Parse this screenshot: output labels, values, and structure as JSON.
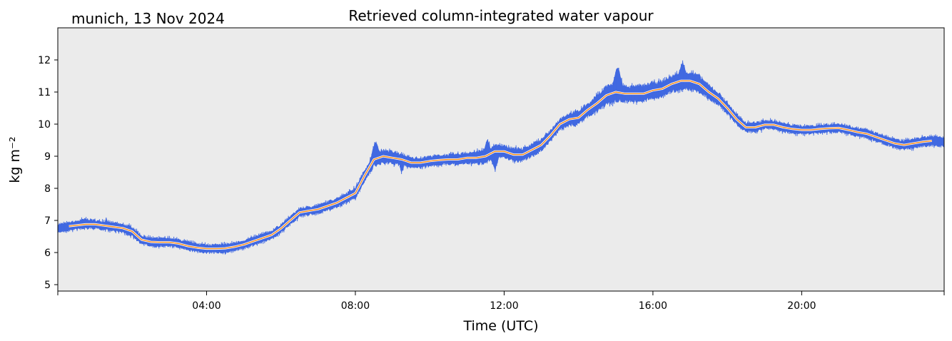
{
  "chart_data": {
    "type": "line",
    "title": "Retrieved column-integrated water vapour",
    "location_date": "munich, 13 Nov 2024",
    "xlabel": "Time (UTC)",
    "ylabel": "kg m⁻²",
    "xlim_hours": [
      0,
      23.83
    ],
    "ylim": [
      4.8,
      13.0
    ],
    "x_ticks": [
      "04:00",
      "08:00",
      "12:00",
      "16:00",
      "20:00"
    ],
    "y_ticks": [
      5,
      6,
      7,
      8,
      9,
      10,
      11,
      12
    ],
    "grid": false,
    "background_color": "#ebebeb",
    "series": [
      {
        "kind": "raw",
        "color": "#4169e1",
        "x_hours": [
          0.0,
          0.25,
          0.5,
          0.75,
          1.0,
          1.25,
          1.5,
          1.75,
          2.0,
          2.25,
          2.5,
          2.75,
          3.0,
          3.25,
          3.5,
          3.75,
          4.0,
          4.25,
          4.5,
          4.75,
          5.0,
          5.25,
          5.5,
          5.75,
          6.0,
          6.25,
          6.5,
          6.75,
          7.0,
          7.25,
          7.5,
          7.75,
          8.0,
          8.25,
          8.5,
          8.75,
          9.0,
          9.25,
          9.5,
          9.75,
          10.0,
          10.25,
          10.5,
          10.75,
          11.0,
          11.25,
          11.5,
          11.75,
          12.0,
          12.25,
          12.5,
          12.75,
          13.0,
          13.25,
          13.5,
          13.75,
          14.0,
          14.25,
          14.5,
          14.75,
          15.0,
          15.25,
          15.5,
          15.75,
          16.0,
          16.25,
          16.5,
          16.75,
          17.0,
          17.25,
          17.5,
          17.75,
          18.0,
          18.25,
          18.5,
          18.75,
          19.0,
          19.25,
          19.5,
          19.75,
          20.0,
          20.25,
          20.5,
          20.75,
          21.0,
          21.25,
          21.5,
          21.75,
          22.0,
          22.25,
          22.5,
          22.75,
          23.0,
          23.25,
          23.5,
          23.83
        ],
        "center": [
          6.75,
          6.8,
          6.85,
          6.9,
          6.88,
          6.83,
          6.8,
          6.75,
          6.65,
          6.4,
          6.33,
          6.32,
          6.32,
          6.28,
          6.2,
          6.15,
          6.12,
          6.12,
          6.13,
          6.18,
          6.25,
          6.35,
          6.45,
          6.55,
          6.75,
          7.0,
          7.25,
          7.3,
          7.35,
          7.45,
          7.55,
          7.7,
          7.85,
          8.4,
          8.9,
          9.0,
          8.95,
          8.9,
          8.8,
          8.8,
          8.85,
          8.88,
          8.9,
          8.9,
          8.95,
          8.95,
          9.0,
          9.15,
          9.15,
          9.05,
          9.05,
          9.2,
          9.35,
          9.65,
          10.0,
          10.15,
          10.2,
          10.45,
          10.65,
          10.9,
          11.0,
          10.95,
          10.95,
          10.95,
          11.05,
          11.1,
          11.25,
          11.35,
          11.35,
          11.25,
          11.0,
          10.8,
          10.5,
          10.15,
          9.9,
          9.9,
          9.98,
          9.98,
          9.9,
          9.85,
          9.82,
          9.82,
          9.85,
          9.87,
          9.88,
          9.82,
          9.75,
          9.7,
          9.6,
          9.5,
          9.4,
          9.35,
          9.4,
          9.45,
          9.48,
          9.45
        ],
        "spread": [
          0.3,
          0.3,
          0.3,
          0.35,
          0.3,
          0.3,
          0.3,
          0.3,
          0.35,
          0.3,
          0.3,
          0.3,
          0.3,
          0.3,
          0.3,
          0.3,
          0.3,
          0.3,
          0.3,
          0.3,
          0.3,
          0.3,
          0.3,
          0.3,
          0.3,
          0.3,
          0.3,
          0.3,
          0.3,
          0.3,
          0.35,
          0.35,
          0.4,
          0.4,
          0.5,
          0.5,
          0.45,
          0.4,
          0.35,
          0.35,
          0.35,
          0.35,
          0.35,
          0.4,
          0.4,
          0.45,
          0.5,
          0.45,
          0.4,
          0.5,
          0.45,
          0.45,
          0.4,
          0.4,
          0.4,
          0.45,
          0.5,
          0.5,
          0.6,
          0.7,
          0.7,
          0.55,
          0.55,
          0.6,
          0.6,
          0.55,
          0.6,
          0.65,
          0.65,
          0.6,
          0.5,
          0.45,
          0.4,
          0.35,
          0.35,
          0.35,
          0.3,
          0.3,
          0.3,
          0.3,
          0.3,
          0.3,
          0.3,
          0.3,
          0.3,
          0.3,
          0.3,
          0.3,
          0.3,
          0.3,
          0.3,
          0.3,
          0.35,
          0.35,
          0.35,
          0.35
        ],
        "peaks": [
          [
            1.3,
            7.1
          ],
          [
            8.55,
            9.55
          ],
          [
            11.55,
            9.6
          ],
          [
            12.8,
            9.5
          ],
          [
            14.3,
            10.6
          ],
          [
            15.05,
            11.85
          ],
          [
            16.8,
            12.0
          ],
          [
            18.3,
            10.0
          ]
        ],
        "troughs": [
          [
            4.5,
            5.9
          ],
          [
            9.25,
            8.45
          ],
          [
            11.75,
            8.5
          ]
        ]
      },
      {
        "kind": "smoothed",
        "color": "#ff8c1a",
        "x_hours": [
          0.3,
          0.75,
          1.0,
          1.25,
          1.5,
          1.75,
          2.0,
          2.25,
          2.5,
          2.75,
          3.0,
          3.25,
          3.5,
          3.75,
          4.0,
          4.25,
          4.5,
          4.75,
          5.0,
          5.25,
          5.5,
          5.75,
          6.0,
          6.25,
          6.5,
          6.75,
          7.0,
          7.25,
          7.5,
          7.75,
          8.0,
          8.25,
          8.5,
          8.75,
          9.0,
          9.25,
          9.5,
          9.75,
          10.0,
          10.25,
          10.5,
          10.75,
          11.0,
          11.25,
          11.5,
          11.75,
          12.0,
          12.25,
          12.5,
          12.75,
          13.0,
          13.25,
          13.5,
          13.75,
          14.0,
          14.25,
          14.5,
          14.75,
          15.0,
          15.25,
          15.5,
          15.75,
          16.0,
          16.25,
          16.5,
          16.75,
          17.0,
          17.25,
          17.5,
          17.75,
          18.0,
          18.25,
          18.5,
          18.75,
          19.0,
          19.25,
          19.5,
          19.75,
          20.0,
          20.25,
          20.5,
          20.75,
          21.0,
          21.25,
          21.5,
          21.75,
          22.0,
          22.25,
          22.5,
          22.75,
          23.0,
          23.25,
          23.5
        ],
        "values": [
          6.82,
          6.88,
          6.88,
          6.84,
          6.8,
          6.76,
          6.66,
          6.4,
          6.33,
          6.32,
          6.32,
          6.28,
          6.2,
          6.15,
          6.12,
          6.12,
          6.13,
          6.18,
          6.25,
          6.35,
          6.45,
          6.55,
          6.75,
          7.0,
          7.25,
          7.3,
          7.35,
          7.45,
          7.55,
          7.7,
          7.85,
          8.4,
          8.9,
          9.0,
          8.95,
          8.9,
          8.8,
          8.8,
          8.85,
          8.88,
          8.9,
          8.9,
          8.95,
          8.95,
          9.0,
          9.15,
          9.15,
          9.05,
          9.05,
          9.2,
          9.35,
          9.65,
          10.0,
          10.15,
          10.2,
          10.45,
          10.65,
          10.9,
          11.0,
          10.95,
          10.95,
          10.95,
          11.05,
          11.1,
          11.25,
          11.35,
          11.35,
          11.25,
          11.0,
          10.8,
          10.5,
          10.15,
          9.9,
          9.9,
          9.98,
          9.98,
          9.9,
          9.85,
          9.82,
          9.82,
          9.85,
          9.87,
          9.88,
          9.82,
          9.75,
          9.7,
          9.6,
          9.5,
          9.4,
          9.35,
          9.4,
          9.45,
          9.48
        ]
      }
    ]
  }
}
